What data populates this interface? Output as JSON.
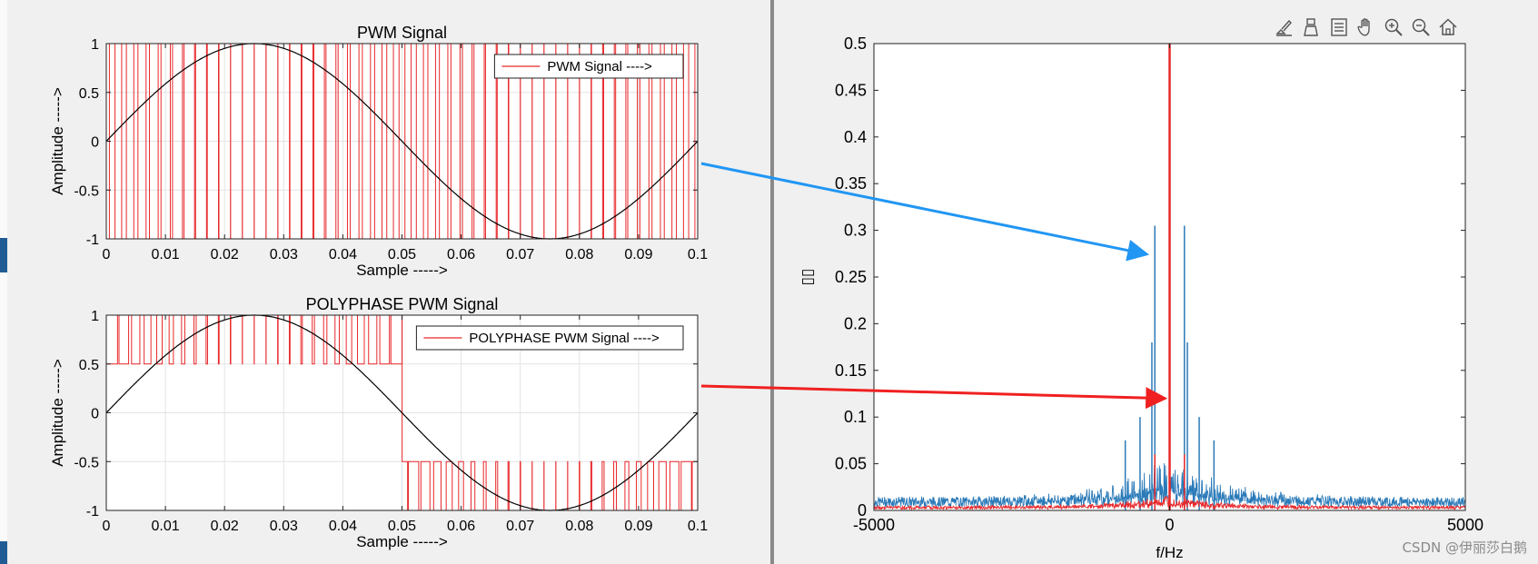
{
  "toolbar": {
    "icons": [
      "brush-icon",
      "data-tips-icon",
      "legend-icon",
      "pan-hand-icon",
      "zoom-in-icon",
      "zoom-out-icon",
      "home-icon"
    ]
  },
  "watermark": "CSDN @伊丽莎白鹅",
  "colors": {
    "pwm": "#e8282b",
    "sine": "#000000",
    "fft": "#2a7ab8",
    "arrow_blue": "#2196f3",
    "arrow_red": "#f02020"
  },
  "chart_data": [
    {
      "type": "line",
      "title": "PWM Signal",
      "xlabel": "Sample ----->",
      "ylabel": "Amplitude ----->",
      "xlim": [
        0,
        0.1
      ],
      "ylim": [
        -1,
        1
      ],
      "xticks": [
        "0",
        "0.01",
        "0.02",
        "0.03",
        "0.04",
        "0.05",
        "0.06",
        "0.07",
        "0.08",
        "0.09",
        "0.1"
      ],
      "yticks": [
        "-1",
        "-0.5",
        "0",
        "0.5",
        "1"
      ],
      "grid": true,
      "legend": {
        "placement": "top-right",
        "entries": [
          "PWM Signal ---->"
        ]
      },
      "series": [
        {
          "name": "PWM Signal ---->",
          "kind": "pwm",
          "levels": [
            -1,
            1
          ],
          "reference_sine_frequency_hz": 10,
          "carrier_frequency_hz": 500
        },
        {
          "kind": "sine",
          "amplitude": 1,
          "frequency_hz": 10
        }
      ]
    },
    {
      "type": "line",
      "title": "POLYPHASE PWM Signal",
      "xlabel": "Sample ----->",
      "ylabel": "Amplitude ----->",
      "xlim": [
        0,
        0.1
      ],
      "ylim": [
        -1,
        1
      ],
      "xticks": [
        "0",
        "0.01",
        "0.02",
        "0.03",
        "0.04",
        "0.05",
        "0.06",
        "0.07",
        "0.08",
        "0.09",
        "0.1"
      ],
      "yticks": [
        "-1",
        "-0.5",
        "0",
        "0.5",
        "1"
      ],
      "grid": true,
      "legend": {
        "placement": "top-right",
        "entries": [
          "POLYPHASE PWM Signal ---->"
        ]
      },
      "series": [
        {
          "name": "POLYPHASE PWM Signal ---->",
          "kind": "polyphase_pwm",
          "levels": [
            -1,
            -0.5,
            0.5,
            1
          ],
          "reference_sine_frequency_hz": 10,
          "carrier_frequency_hz": 500
        },
        {
          "kind": "sine",
          "amplitude": 1,
          "frequency_hz": 10
        }
      ]
    },
    {
      "type": "line",
      "title": "",
      "xlabel": "f/Hz",
      "ylabel": "▯▯",
      "xlim": [
        -5000,
        5000
      ],
      "ylim": [
        0,
        0.5
      ],
      "xticks": [
        "-5000",
        "0",
        "5000"
      ],
      "yticks": [
        "0",
        "0.05",
        "0.1",
        "0.15",
        "0.2",
        "0.25",
        "0.3",
        "0.35",
        "0.4",
        "0.45",
        "0.5"
      ],
      "grid": false,
      "series": [
        {
          "kind": "spectrum",
          "color": "blue",
          "peaks": [
            {
              "f": -250,
              "y": 0.305
            },
            {
              "f": 250,
              "y": 0.305
            },
            {
              "f": -300,
              "y": 0.18
            },
            {
              "f": 300,
              "y": 0.18
            },
            {
              "f": -500,
              "y": 0.1
            },
            {
              "f": 500,
              "y": 0.1
            },
            {
              "f": -750,
              "y": 0.075
            },
            {
              "f": 750,
              "y": 0.075
            }
          ],
          "noise_floor": 0.012
        },
        {
          "kind": "spectrum",
          "color": "red",
          "peaks": [
            {
              "f": 0,
              "y": 0.5
            },
            {
              "f": -250,
              "y": 0.06
            },
            {
              "f": 250,
              "y": 0.06
            }
          ],
          "noise_floor": 0.004
        }
      ]
    }
  ]
}
